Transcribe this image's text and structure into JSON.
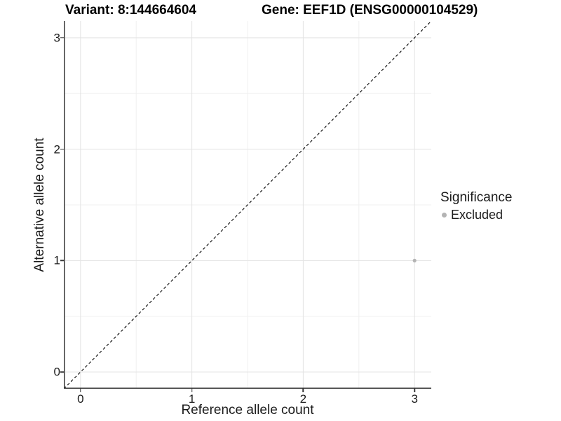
{
  "header": {
    "variant_title": "Variant: 8:144664604",
    "gene_title": "Gene: EEF1D (ENSG00000104529)"
  },
  "chart_data": {
    "type": "scatter",
    "title": "Variant: 8:144664604",
    "title_right": "Gene: EEF1D (ENSG00000104529)",
    "xlabel": "Reference allele count",
    "ylabel": "Alternative allele count",
    "xlim": [
      -0.15,
      3.15
    ],
    "ylim": [
      -0.15,
      3.15
    ],
    "x_ticks": [
      0,
      1,
      2,
      3
    ],
    "y_ticks": [
      0,
      1,
      2,
      3
    ],
    "grid": {
      "on": true,
      "major": [
        0,
        1,
        2,
        3
      ],
      "minor": [
        0.5,
        1.5,
        2.5
      ]
    },
    "reference_line": {
      "style": "dashed",
      "slope": 1,
      "intercept": 0,
      "color": "#000000"
    },
    "legend": {
      "title": "Significance",
      "position": "right"
    },
    "series": [
      {
        "name": "Excluded",
        "color": "#b4b4b4",
        "points": [
          [
            3,
            1
          ]
        ]
      }
    ]
  },
  "colors": {
    "title": "#000000",
    "text": "#1a1a1a",
    "axis": "#383838",
    "grid_major": "#e3e3e3",
    "grid_minor": "#f0f0f0",
    "point": "#b4b4b4",
    "background": "#ffffff"
  }
}
